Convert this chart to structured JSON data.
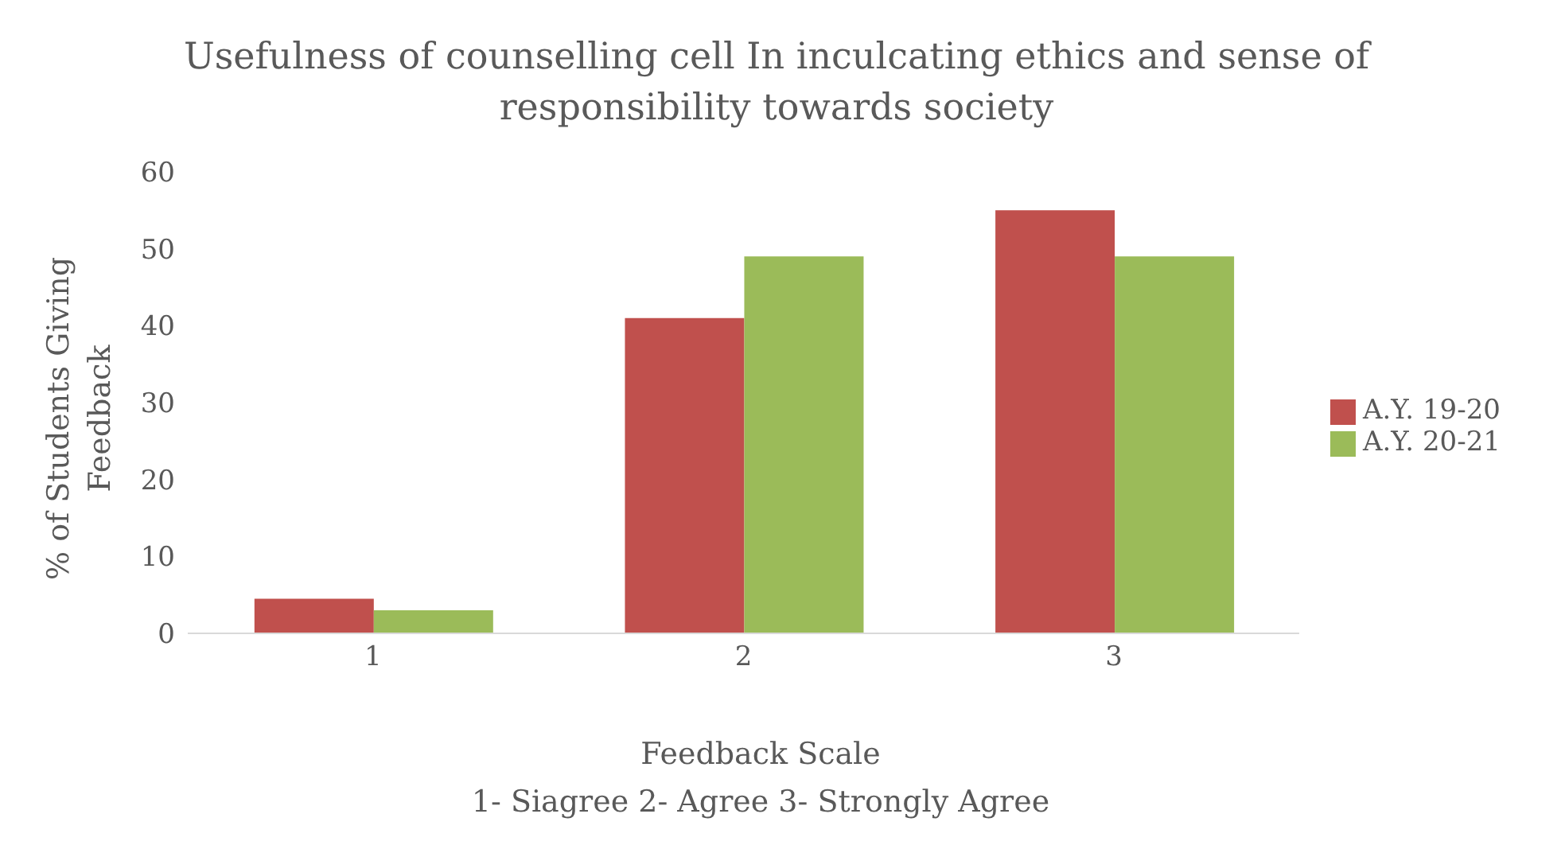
{
  "chart_data": {
    "type": "bar",
    "title": "Usefulness of counselling cell In inculcating ethics and sense of responsibility towards society",
    "xlabel": "Feedback Scale",
    "ylabel": "% of Students Giving Feedback",
    "annotations": [
      "1- Siagree 2- Agree 3- Strongly Agree"
    ],
    "categories": [
      "1",
      "2",
      "3"
    ],
    "series": [
      {
        "name": "A.Y. 19-20",
        "color": "#c0504d",
        "values": [
          4.5,
          41,
          55
        ]
      },
      {
        "name": "A.Y. 20-21",
        "color": "#9bbb59",
        "values": [
          3,
          49,
          49
        ]
      }
    ],
    "ylim": [
      0,
      60
    ],
    "yticks": [
      0,
      10,
      20,
      30,
      40,
      50,
      60
    ],
    "grid": false,
    "legend": "right"
  }
}
